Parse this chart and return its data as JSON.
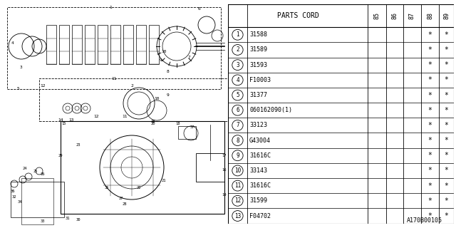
{
  "title": "",
  "figure_code": "A170B00105",
  "bg_color": "#ffffff",
  "header": [
    "PARTS CORD",
    "85",
    "86",
    "87",
    "88",
    "89"
  ],
  "rows": [
    [
      "1",
      "31588",
      "",
      "",
      "",
      "*",
      "*"
    ],
    [
      "2",
      "31589",
      "",
      "",
      "",
      "*",
      "*"
    ],
    [
      "3",
      "31593",
      "",
      "",
      "",
      "*",
      "*"
    ],
    [
      "4",
      "F10003",
      "",
      "",
      "",
      "*",
      "*"
    ],
    [
      "5",
      "31377",
      "",
      "",
      "",
      "*",
      "*"
    ],
    [
      "6",
      "060162090(1)",
      "",
      "",
      "",
      "*",
      "*"
    ],
    [
      "7",
      "33123",
      "",
      "",
      "",
      "*",
      "*"
    ],
    [
      "8",
      "G43004",
      "",
      "",
      "",
      "*",
      "*"
    ],
    [
      "9",
      "31616C",
      "",
      "",
      "",
      "*",
      "*"
    ],
    [
      "10",
      "33143",
      "",
      "",
      "",
      "*",
      "*"
    ],
    [
      "11",
      "31616C",
      "",
      "",
      "",
      "*",
      "*"
    ],
    [
      "12",
      "31599",
      "",
      "",
      "",
      "*",
      "*"
    ],
    [
      "13",
      "F04702",
      "",
      "",
      "",
      "*",
      "*"
    ]
  ],
  "line_color": "#000000",
  "text_color": "#000000"
}
